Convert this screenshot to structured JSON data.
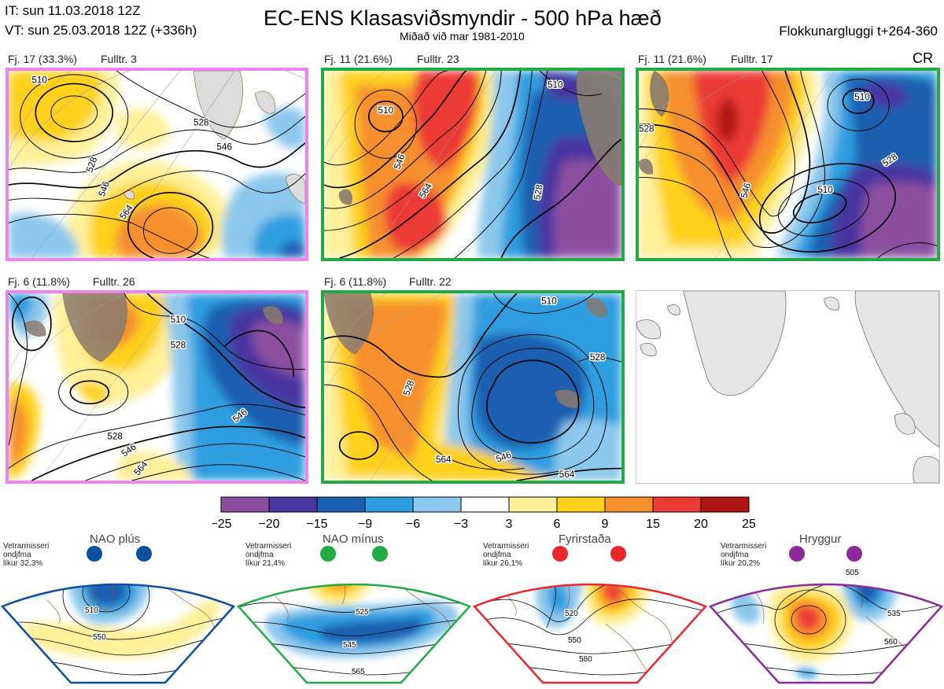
{
  "header": {
    "it": "IT: sun 11.03.2018 12Z",
    "vt": "VT: sun 25.03.2018 12Z  (+336h)",
    "title": "EC-ENS Klasasviðsmyndir - 500 hPa hæð",
    "subtitle": "Miðað við mar 1981-2010",
    "window": "Flokkunargluggi t+264-360",
    "cr": "CR"
  },
  "panels": [
    {
      "caption_count": "Fj. 17 (33.3%)",
      "caption_rep": "Fulltr. 3",
      "border_color": "#ee82ee",
      "contour_labels": [
        "510",
        "528",
        "546",
        "564",
        "528",
        "546"
      ]
    },
    {
      "caption_count": "Fj. 11 (21.6%)",
      "caption_rep": "Fulltr. 23",
      "border_color": "#22aa44",
      "contour_labels": [
        "510",
        "546",
        "564",
        "528",
        "510"
      ]
    },
    {
      "caption_count": "Fj. 11 (21.6%)",
      "caption_rep": "Fulltr. 17",
      "border_color": "#22aa44",
      "contour_labels": [
        "510",
        "528",
        "546",
        "510",
        "528"
      ]
    },
    {
      "caption_count": "Fj. 6 (11.8%)",
      "caption_rep": "Fulltr. 26",
      "border_color": "#ee82ee",
      "contour_labels": [
        "510",
        "528",
        "546",
        "528",
        "546",
        "564"
      ]
    },
    {
      "caption_count": "Fj. 6 (11.8%)",
      "caption_rep": "Fulltr. 22",
      "border_color": "#22aa44",
      "contour_labels": [
        "510",
        "528",
        "546",
        "564",
        "528",
        "564"
      ]
    }
  ],
  "colorbar": {
    "ticks": [
      "−25",
      "−20",
      "−15",
      "−9",
      "−6",
      "−3",
      "3",
      "6",
      "9",
      "15",
      "20",
      "25"
    ],
    "colors": [
      "#8c4fa0",
      "#4a36a0",
      "#1a5fb0",
      "#2f9ee0",
      "#8cc8ec",
      "#ffffff",
      "#fff09a",
      "#ffd11a",
      "#f6902e",
      "#ec3a36",
      "#b01414"
    ]
  },
  "regimes": [
    {
      "title": "NAO plús",
      "note": "Vetrarmisseri\nondjfma\nlíkur 32,3%",
      "color": "#0a4fa0",
      "labels": [
        "510",
        "550"
      ]
    },
    {
      "title": "NAO mínus",
      "note": "Vetrarmisseri\nondjfma\nlíkur 21,4%",
      "color": "#22aa44",
      "labels": [
        "525",
        "545",
        "565"
      ]
    },
    {
      "title": "Fyrirstaða",
      "note": "Vetrarmisseri\nondjfma\nlíkur 26,1%",
      "color": "#e8282c",
      "labels": [
        "520",
        "550",
        "560"
      ]
    },
    {
      "title": "Hryggur",
      "note": "Vetrarmisseri\nondjfma\nlíkur 20,2%",
      "color": "#8b2a9a",
      "labels": [
        "505",
        "535",
        "560"
      ]
    }
  ]
}
